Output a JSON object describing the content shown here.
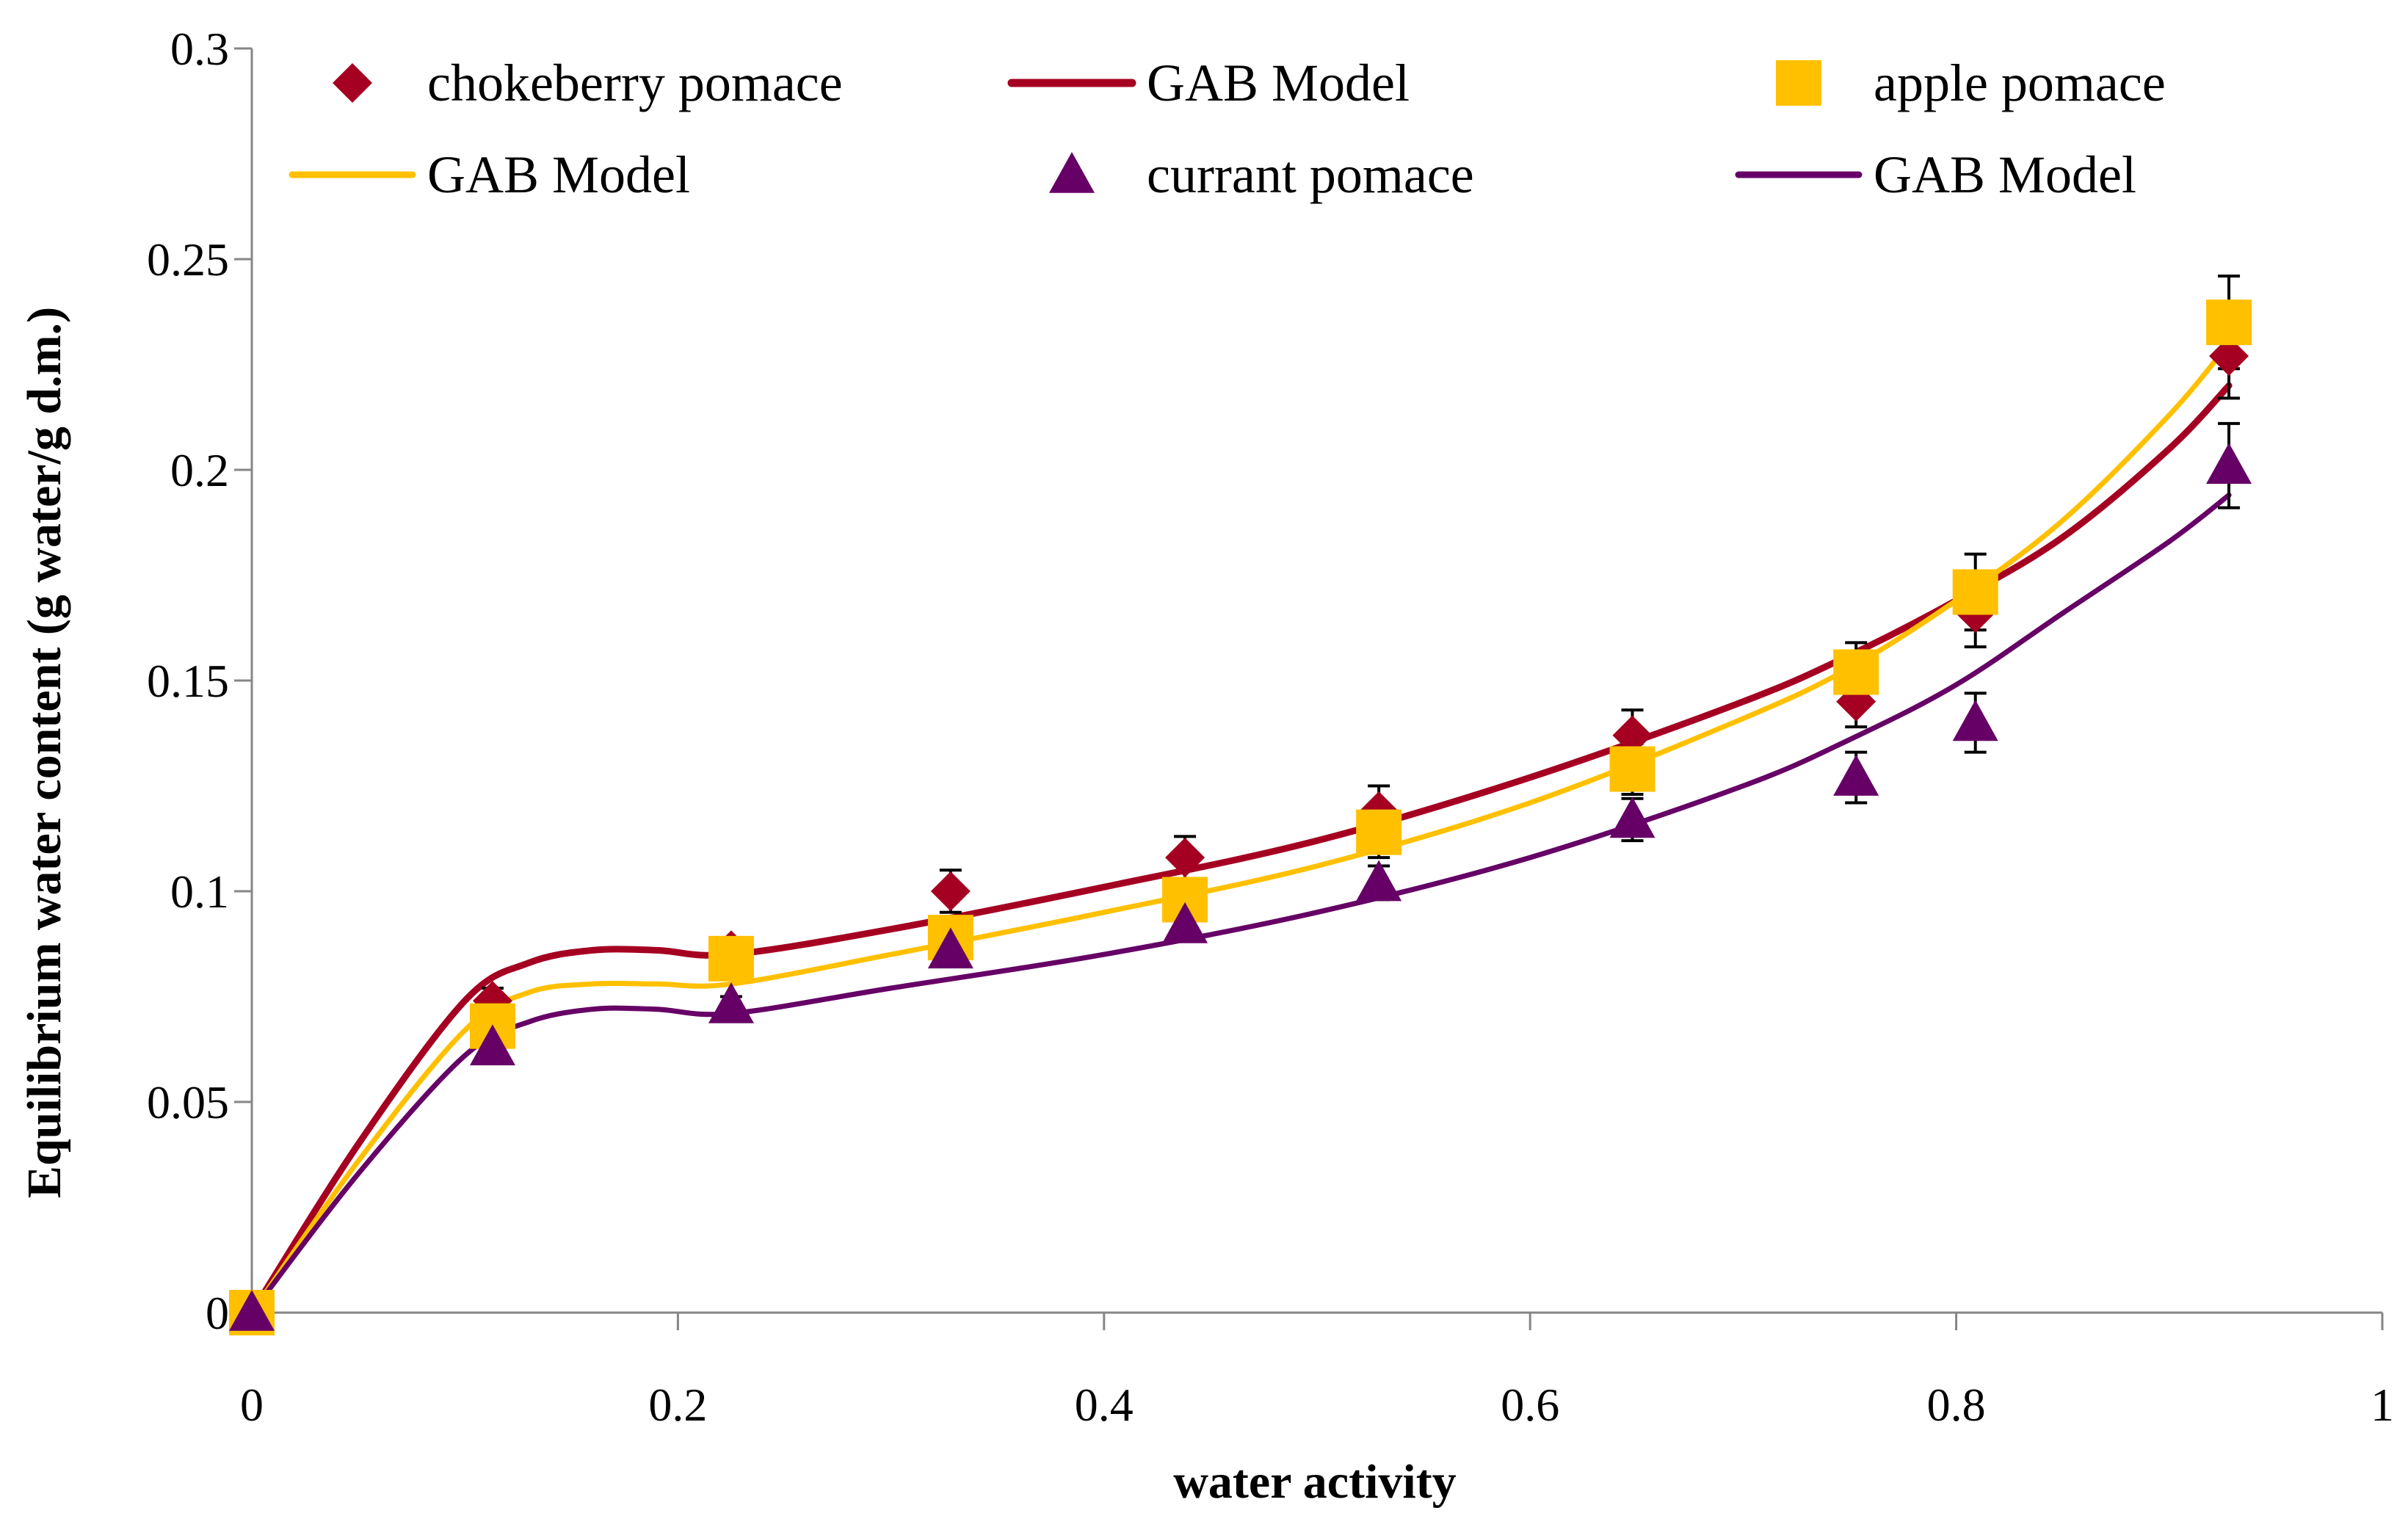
{
  "chart_data": {
    "type": "scatter",
    "title": "",
    "xlabel": "water activity",
    "ylabel": "Equilibrium water content (g water/g d.m.)",
    "xlim": [
      0,
      1
    ],
    "ylim": [
      0,
      0.3
    ],
    "xticks": [
      "0",
      "0.2",
      "0.4",
      "0.6",
      "0.8",
      "1"
    ],
    "yticks": [
      "0",
      "0.05",
      "0.1",
      "0.15",
      "0.2",
      "0.25",
      "0.3"
    ],
    "grid": false,
    "legend_position": "top",
    "series": [
      {
        "name": "chokeberry pomace",
        "kind": "points",
        "marker": "diamond",
        "color": "#A50021",
        "x": [
          0,
          0.113,
          0.225,
          0.328,
          0.438,
          0.529,
          0.648,
          0.753,
          0.809,
          0.928
        ],
        "y": [
          0,
          0.074,
          0.086,
          0.1,
          0.108,
          0.119,
          0.137,
          0.145,
          0.166,
          0.227
        ],
        "err": [
          0,
          0.003,
          0.003,
          0.005,
          0.005,
          0.006,
          0.006,
          0.006,
          0.008,
          0.01
        ]
      },
      {
        "name": "GAB Model",
        "kind": "line",
        "color": "#A50021",
        "width": 9,
        "x": [
          0,
          0.05,
          0.1,
          0.13,
          0.16,
          0.19,
          0.225,
          0.3,
          0.4,
          0.5,
          0.6,
          0.7,
          0.75,
          0.8,
          0.85,
          0.9,
          0.928
        ],
        "y": [
          0,
          0.04,
          0.074,
          0.083,
          0.086,
          0.086,
          0.085,
          0.091,
          0.101,
          0.112,
          0.127,
          0.145,
          0.156,
          0.169,
          0.184,
          0.205,
          0.22
        ]
      },
      {
        "name": "apple pomace",
        "kind": "points",
        "marker": "square",
        "color": "#FFC000",
        "x": [
          0,
          0.113,
          0.225,
          0.328,
          0.438,
          0.529,
          0.648,
          0.753,
          0.809,
          0.928
        ],
        "y": [
          0,
          0.068,
          0.084,
          0.089,
          0.098,
          0.114,
          0.129,
          0.152,
          0.171,
          0.235
        ],
        "err": [
          0,
          0.002,
          0.004,
          0.003,
          0.004,
          0.006,
          0.006,
          0.007,
          0.009,
          0.011
        ]
      },
      {
        "name": "GAB Model",
        "kind": "line",
        "color": "#FFC000",
        "width": 7,
        "x": [
          0,
          0.05,
          0.1,
          0.13,
          0.16,
          0.19,
          0.225,
          0.3,
          0.4,
          0.5,
          0.6,
          0.7,
          0.75,
          0.8,
          0.85,
          0.9,
          0.928
        ],
        "y": [
          0,
          0.036,
          0.067,
          0.076,
          0.078,
          0.078,
          0.078,
          0.085,
          0.095,
          0.106,
          0.121,
          0.141,
          0.153,
          0.169,
          0.188,
          0.213,
          0.23
        ]
      },
      {
        "name": "currant pomace",
        "kind": "points",
        "marker": "triangle",
        "color": "#660066",
        "x": [
          0,
          0.113,
          0.225,
          0.328,
          0.438,
          0.529,
          0.648,
          0.753,
          0.809,
          0.928
        ],
        "y": [
          0,
          0.063,
          0.073,
          0.086,
          0.092,
          0.102,
          0.117,
          0.127,
          0.14,
          0.201
        ],
        "err": [
          0,
          0.002,
          0.002,
          0.003,
          0.003,
          0.004,
          0.005,
          0.006,
          0.007,
          0.01
        ]
      },
      {
        "name": "GAB Model",
        "kind": "line",
        "color": "#660066",
        "width": 7,
        "x": [
          0,
          0.05,
          0.1,
          0.13,
          0.16,
          0.19,
          0.225,
          0.3,
          0.4,
          0.5,
          0.6,
          0.7,
          0.75,
          0.8,
          0.85,
          0.9,
          0.928
        ],
        "y": [
          0,
          0.033,
          0.061,
          0.069,
          0.072,
          0.072,
          0.071,
          0.077,
          0.085,
          0.095,
          0.108,
          0.125,
          0.136,
          0.149,
          0.166,
          0.183,
          0.194
        ]
      }
    ]
  }
}
